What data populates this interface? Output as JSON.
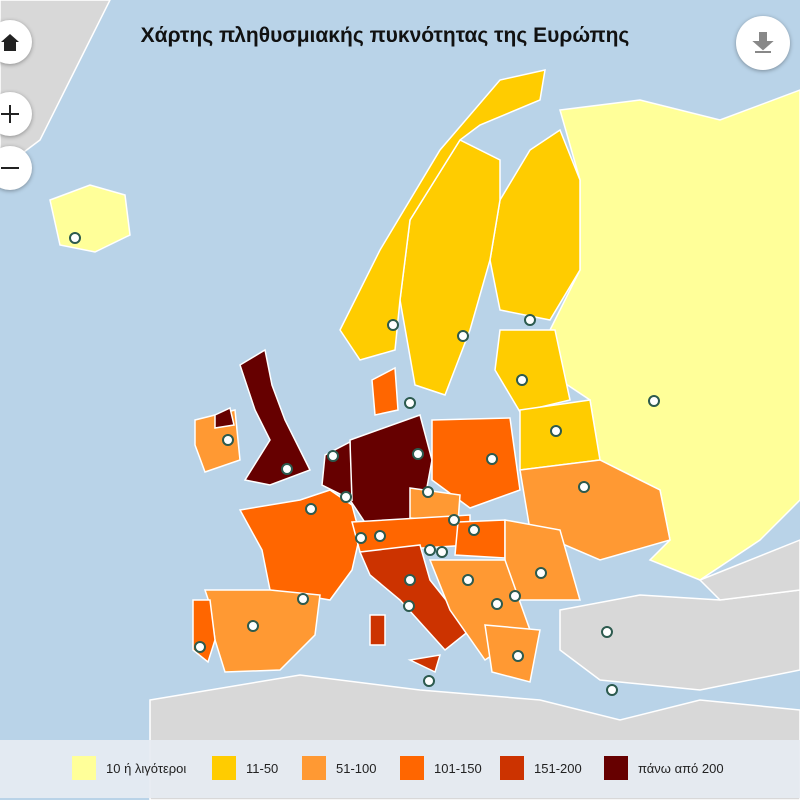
{
  "header": {
    "title": "Χάρτης πληθυσμιακής πυκνότητας της Ευρώπης"
  },
  "legend": {
    "items": [
      {
        "label": "10 ή λιγότεροι",
        "color": "#ffff99"
      },
      {
        "label": "11-50",
        "color": "#ffcc00"
      },
      {
        "label": "51-100",
        "color": "#ff9933"
      },
      {
        "label": "101-150",
        "color": "#ff6600"
      },
      {
        "label": "151-200",
        "color": "#cc3300"
      },
      {
        "label": "πάνω από 200",
        "color": "#660000"
      }
    ]
  }
}
